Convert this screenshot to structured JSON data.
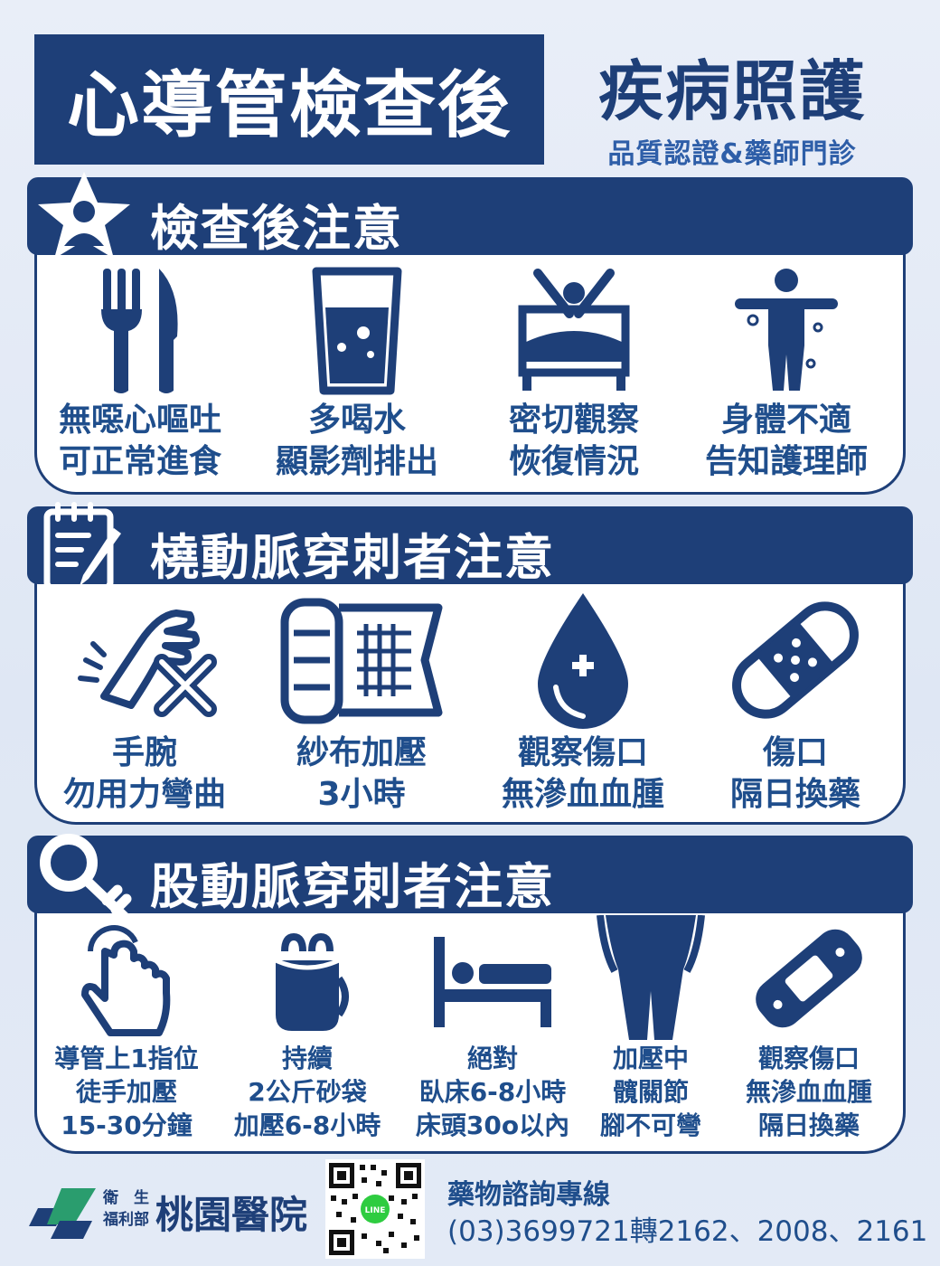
{
  "header": {
    "title": "心導管檢查後",
    "brand": "疾病照護",
    "brand_sub": "品質認證&藥師門診"
  },
  "sections": [
    {
      "title": "檢查後注意",
      "items": [
        {
          "icon": "fork-knife-icon",
          "line1": "無噁心嘔吐",
          "line2": "可正常進食"
        },
        {
          "icon": "water-glass-icon",
          "line1": "多喝水",
          "line2": "顯影劑排出"
        },
        {
          "icon": "bed-person-icon",
          "line1": "密切觀察",
          "line2": "恢復情況"
        },
        {
          "icon": "person-unwell-icon",
          "line1": "身體不適",
          "line2": "告知護理師"
        }
      ]
    },
    {
      "title": "橈動脈穿刺者注意",
      "items": [
        {
          "icon": "wrist-no-bend-icon",
          "line1": "手腕",
          "line2": "勿用力彎曲"
        },
        {
          "icon": "gauze-roll-icon",
          "line1": "紗布加壓",
          "line2": "3小時"
        },
        {
          "icon": "blood-drop-icon",
          "line1": "觀察傷口",
          "line2": "無滲血血腫"
        },
        {
          "icon": "bandage-icon",
          "line1": "傷口",
          "line2": "隔日換藥"
        }
      ]
    },
    {
      "title": "股動脈穿刺者注意",
      "items": [
        {
          "icon": "finger-press-icon",
          "line1": "導管上1指位",
          "line2": "徒手加壓",
          "line3": "15-30分鐘"
        },
        {
          "icon": "sandbag-icon",
          "line1": "持續",
          "line2": "2公斤砂袋",
          "line3": "加壓6-8小時"
        },
        {
          "icon": "bed-lying-icon",
          "line1": "絕對",
          "line2": "臥床6-8小時",
          "line3": "床頭30o以內"
        },
        {
          "icon": "body-legs-icon",
          "line1": "加壓中",
          "line2": "髖關節",
          "line3": "腳不可彎"
        },
        {
          "icon": "bandage-icon",
          "line1": "觀察傷口",
          "line2": "無滲血血腫",
          "line3": "隔日換藥"
        }
      ]
    }
  ],
  "footer": {
    "ministry_line1": "衛　生",
    "ministry_line2": "福利部",
    "hospital": "桃園醫院",
    "qr_badge": "LINE",
    "hotline_label": "藥物諮詢專線",
    "hotline_number": "(03)3699721轉2162、2008、2161"
  },
  "colors": {
    "navy": "#1e3f78",
    "text_blue": "#1f4e8c",
    "background": "#e3eaf6"
  }
}
